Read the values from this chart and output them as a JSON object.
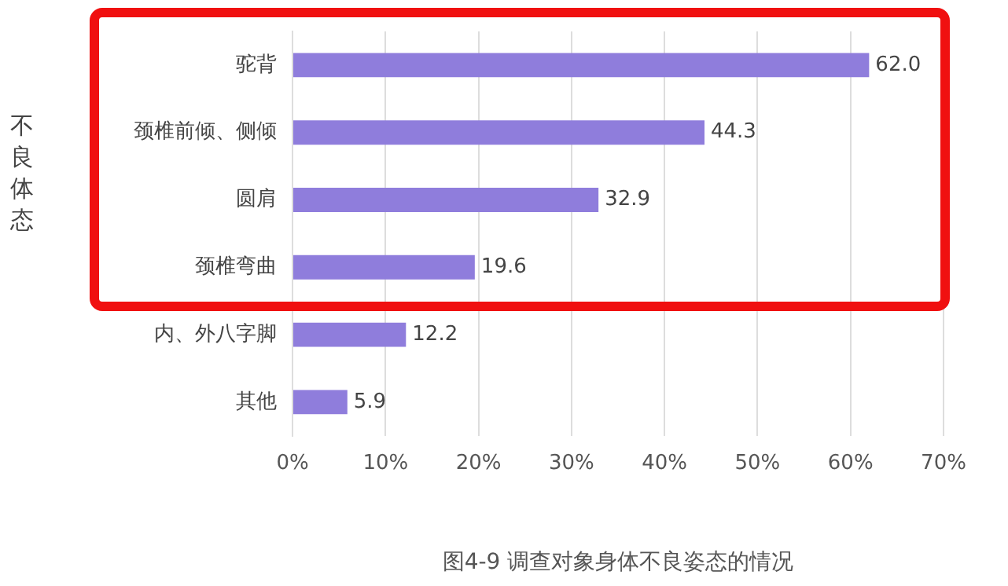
{
  "chart_data": {
    "type": "bar",
    "orientation": "horizontal",
    "title": "图4-9 调查对象身体不良姿态的情况",
    "ylabel": "不良体态",
    "categories": [
      "驼背",
      "颈椎前倾、侧倾",
      "圆肩",
      "颈椎弯曲",
      "内、外八字脚",
      "其他"
    ],
    "values": [
      62.0,
      44.3,
      32.9,
      19.6,
      12.2,
      5.9
    ],
    "value_labels": [
      "62.0",
      "44.3",
      "32.9",
      "19.6",
      "12.2",
      "5.9"
    ],
    "color": "#8f7ddc",
    "xlim": [
      0,
      70
    ],
    "xticks": [
      {
        "value": 0,
        "label": "0%"
      },
      {
        "value": 10,
        "label": "10%"
      },
      {
        "value": 20,
        "label": "20%"
      },
      {
        "value": 30,
        "label": "30%"
      },
      {
        "value": 40,
        "label": "40%"
      },
      {
        "value": 50,
        "label": "50%"
      },
      {
        "value": 60,
        "label": "60%"
      },
      {
        "value": 70,
        "label": "70%"
      }
    ],
    "grid": "x",
    "legend": false
  }
}
